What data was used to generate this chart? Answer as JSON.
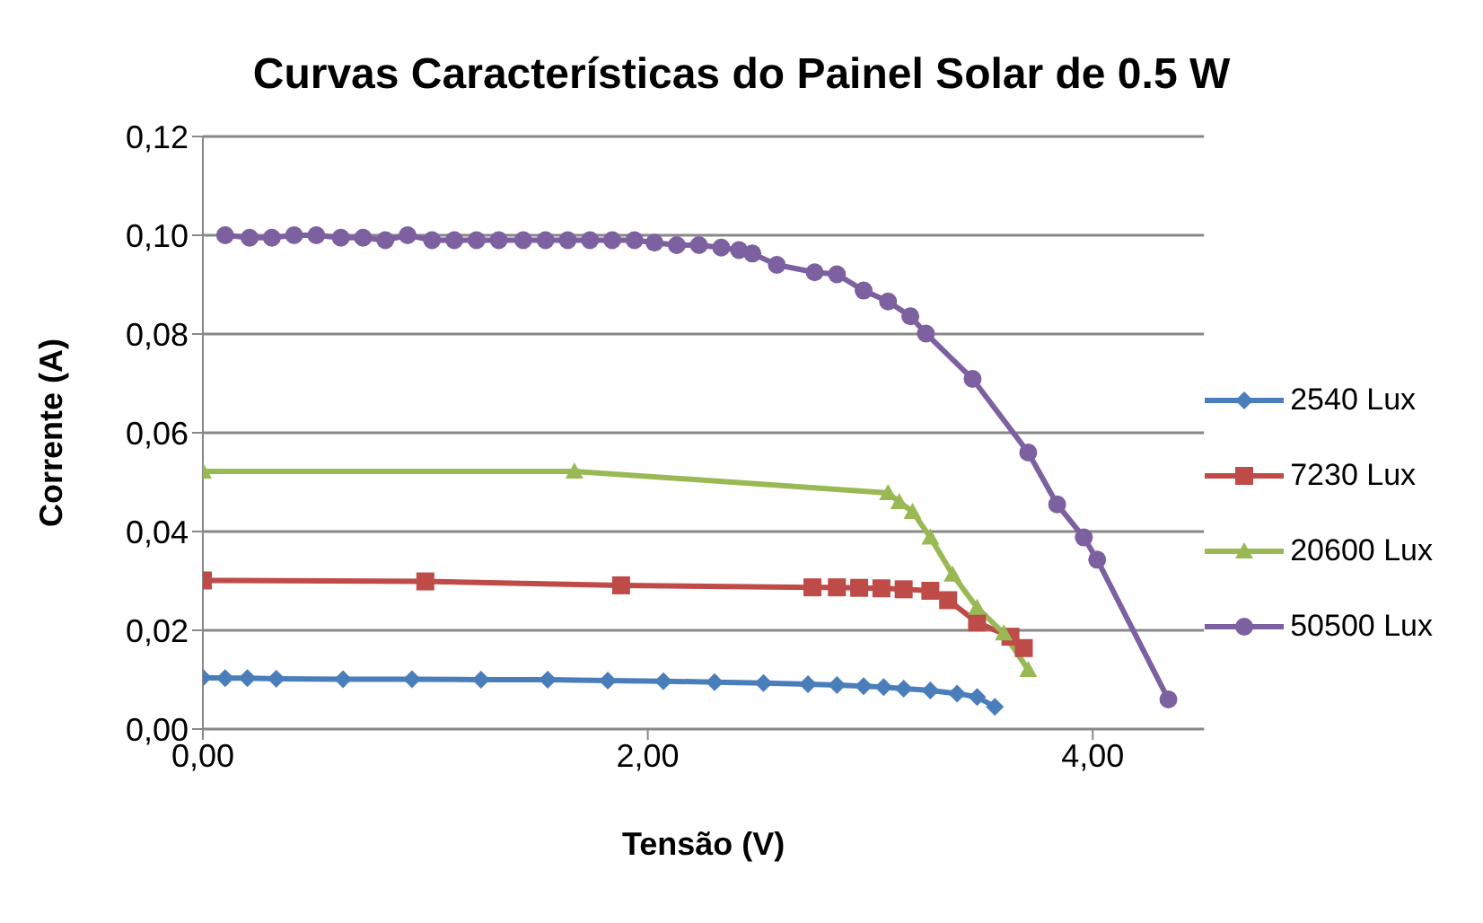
{
  "chart_data": {
    "type": "line",
    "title": "Curvas Características do Painel Solar de 0.5 W",
    "xlabel": "Tensão (V)",
    "ylabel": "Corrente (A)",
    "xlim": [
      0,
      4.5
    ],
    "xticks": [
      {
        "value": 0,
        "label": "0,00"
      },
      {
        "value": 2,
        "label": "2,00"
      },
      {
        "value": 4,
        "label": "4,00"
      }
    ],
    "ylim": [
      0,
      0.12
    ],
    "yticks": [
      {
        "value": 0,
        "label": "0,00"
      },
      {
        "value": 0.02,
        "label": "0,02"
      },
      {
        "value": 0.04,
        "label": "0,04"
      },
      {
        "value": 0.06,
        "label": "0,06"
      },
      {
        "value": 0.08,
        "label": "0,08"
      },
      {
        "value": 0.1,
        "label": "0,10"
      },
      {
        "value": 0.12,
        "label": "0,12"
      }
    ],
    "grid": "y",
    "legend": "right",
    "series": [
      {
        "name": "2540 Lux",
        "color": "#4a7ebb",
        "marker": "diamond",
        "x": [
          0,
          0.1,
          0.2,
          0.33,
          0.63,
          0.94,
          1.25,
          1.55,
          1.82,
          2.07,
          2.3,
          2.52,
          2.72,
          2.85,
          2.97,
          3.06,
          3.15,
          3.27,
          3.39,
          3.48,
          3.56
        ],
        "values": [
          0.0104,
          0.0103,
          0.0103,
          0.0102,
          0.0101,
          0.0101,
          0.01,
          0.01,
          0.0098,
          0.0097,
          0.0095,
          0.0093,
          0.0091,
          0.0089,
          0.0087,
          0.0085,
          0.0082,
          0.0078,
          0.0072,
          0.0065,
          0.0045
        ]
      },
      {
        "name": "7230 Lux",
        "color": "#be4b48",
        "marker": "square",
        "x": [
          0,
          1,
          1.88,
          2.74,
          2.85,
          2.95,
          3.05,
          3.15,
          3.27,
          3.35,
          3.48,
          3.63,
          3.69
        ],
        "values": [
          0.0301,
          0.0299,
          0.0291,
          0.0287,
          0.0287,
          0.0286,
          0.0285,
          0.0283,
          0.028,
          0.0261,
          0.0216,
          0.0187,
          0.0164
        ]
      },
      {
        "name": "20600 Lux",
        "color": "#98b954",
        "marker": "triangle",
        "x": [
          0,
          1.67,
          3.08,
          3.13,
          3.19,
          3.27,
          3.37,
          3.48,
          3.6,
          3.71
        ],
        "values": [
          0.0522,
          0.0522,
          0.0478,
          0.046,
          0.044,
          0.0388,
          0.0313,
          0.0246,
          0.0194,
          0.012
        ]
      },
      {
        "name": "50500 Lux",
        "color": "#7d60a0",
        "marker": "circle",
        "x": [
          0.1,
          0.21,
          0.31,
          0.41,
          0.51,
          0.62,
          0.72,
          0.82,
          0.92,
          1.03,
          1.13,
          1.23,
          1.33,
          1.44,
          1.54,
          1.64,
          1.74,
          1.84,
          1.94,
          2.03,
          2.13,
          2.23,
          2.33,
          2.41,
          2.47,
          2.58,
          2.75,
          2.85,
          2.97,
          3.08,
          3.18,
          3.25,
          3.46,
          3.71,
          3.84,
          3.96,
          4.02,
          4.34
        ],
        "values": [
          0.1,
          0.0995,
          0.0995,
          0.1,
          0.1,
          0.0995,
          0.0995,
          0.099,
          0.1,
          0.099,
          0.099,
          0.099,
          0.099,
          0.099,
          0.099,
          0.099,
          0.099,
          0.099,
          0.099,
          0.0985,
          0.098,
          0.098,
          0.0975,
          0.097,
          0.0963,
          0.094,
          0.0925,
          0.0921,
          0.0888,
          0.0866,
          0.0836,
          0.0801,
          0.0709,
          0.056,
          0.0455,
          0.0388,
          0.0343,
          0.006
        ]
      }
    ]
  }
}
